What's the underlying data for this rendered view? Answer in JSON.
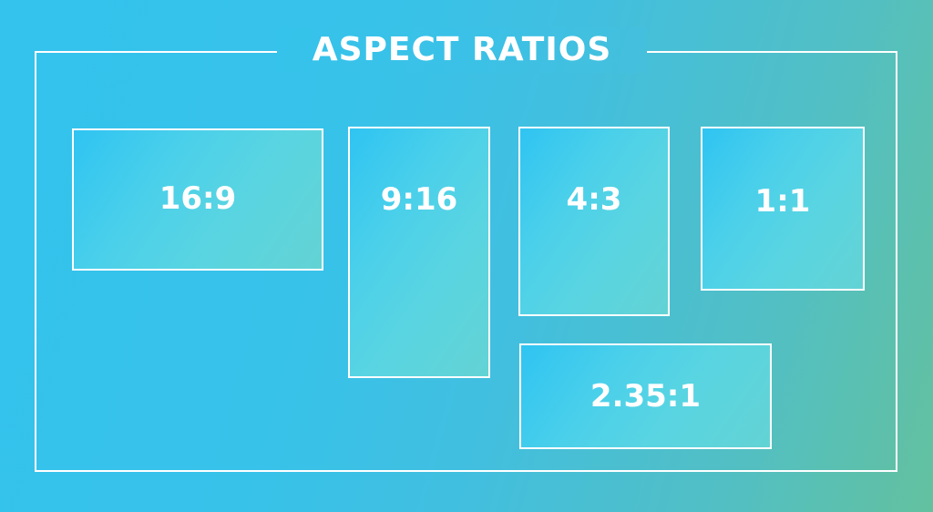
{
  "title": "ASPECT RATIOS",
  "ratios": [
    {
      "label": "16:9"
    },
    {
      "label": "9:16"
    },
    {
      "label": "4:3"
    },
    {
      "label": "1:1"
    },
    {
      "label": "2.35:1"
    }
  ],
  "colors": {
    "background_start": "#33c3ec",
    "background_end": "#63c19f",
    "line": "#ffffff",
    "text": "#ffffff"
  }
}
